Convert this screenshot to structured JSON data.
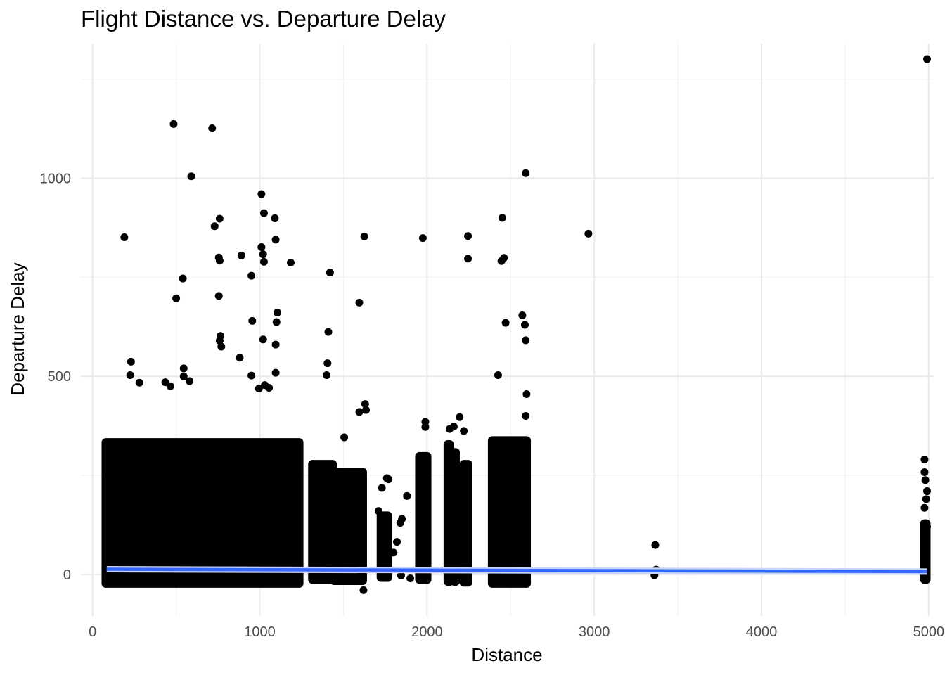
{
  "chart_data": {
    "type": "scatter",
    "title": "Flight Distance vs. Departure Delay",
    "xlabel": "Distance",
    "ylabel": "Departure Delay",
    "xlim": [
      -70,
      5030
    ],
    "ylim": [
      -105,
      1340
    ],
    "xticks": [
      0,
      1000,
      2000,
      3000,
      4000,
      5000
    ],
    "xtick_labels": [
      "0",
      "1000",
      "2000",
      "3000",
      "4000",
      "5000"
    ],
    "yticks": [
      0,
      500,
      1000
    ],
    "ytick_labels": [
      "0",
      "500",
      "1000"
    ],
    "grid": true,
    "legend": "none",
    "colors": {
      "points": "#000000",
      "trend": "#3366ff",
      "grid": "#ebebeb"
    },
    "series": [
      {
        "points": [
          [
            485,
            1137
          ],
          [
            715,
            1126
          ],
          [
            590,
            1005
          ],
          [
            190,
            851
          ],
          [
            730,
            879
          ],
          [
            760,
            898
          ],
          [
            540,
            747
          ],
          [
            500,
            697
          ],
          [
            760,
            792
          ],
          [
            755,
            800
          ],
          [
            755,
            703
          ],
          [
            1010,
            960
          ],
          [
            1025,
            912
          ],
          [
            1090,
            899
          ],
          [
            1010,
            826
          ],
          [
            1020,
            808
          ],
          [
            1095,
            845
          ],
          [
            1025,
            789
          ],
          [
            890,
            805
          ],
          [
            950,
            754
          ],
          [
            1185,
            787
          ],
          [
            1420,
            762
          ],
          [
            1625,
            853
          ],
          [
            1595,
            686
          ],
          [
            1975,
            849
          ],
          [
            2245,
            854
          ],
          [
            2245,
            797
          ],
          [
            2445,
            791
          ],
          [
            2460,
            799
          ],
          [
            2450,
            900
          ],
          [
            2590,
            1013
          ],
          [
            2570,
            654
          ],
          [
            2470,
            635
          ],
          [
            2585,
            630
          ],
          [
            2590,
            591
          ],
          [
            2425,
            503
          ],
          [
            955,
            640
          ],
          [
            1020,
            593
          ],
          [
            1095,
            580
          ],
          [
            1100,
            637
          ],
          [
            1105,
            661
          ],
          [
            760,
            590
          ],
          [
            765,
            602
          ],
          [
            770,
            575
          ],
          [
            880,
            547
          ],
          [
            950,
            502
          ],
          [
            995,
            469
          ],
          [
            1030,
            478
          ],
          [
            1055,
            471
          ],
          [
            1095,
            509
          ],
          [
            1410,
            612
          ],
          [
            1405,
            533
          ],
          [
            1400,
            503
          ],
          [
            230,
            537
          ],
          [
            225,
            503
          ],
          [
            545,
            520
          ],
          [
            545,
            500
          ],
          [
            580,
            488
          ],
          [
            280,
            484
          ],
          [
            435,
            485
          ],
          [
            465,
            475
          ],
          [
            2965,
            860
          ],
          [
            3365,
            74
          ],
          [
            3370,
            12
          ],
          [
            3360,
            -2
          ],
          [
            4990,
            1301
          ],
          [
            4975,
            290
          ],
          [
            4975,
            258
          ],
          [
            4980,
            238
          ],
          [
            4990,
            210
          ],
          [
            4985,
            190
          ],
          [
            4975,
            168
          ],
          [
            4990,
            120
          ],
          [
            4975,
            80
          ],
          [
            4980,
            40
          ],
          [
            1505,
            346
          ],
          [
            1595,
            410
          ],
          [
            1630,
            430
          ],
          [
            1635,
            415
          ],
          [
            1990,
            385
          ],
          [
            1990,
            372
          ],
          [
            2135,
            367
          ],
          [
            2160,
            373
          ],
          [
            2195,
            397
          ],
          [
            2220,
            362
          ],
          [
            2410,
            320
          ],
          [
            2590,
            400
          ],
          [
            2595,
            455
          ],
          [
            1760,
            243
          ],
          [
            1770,
            240
          ],
          [
            1730,
            218
          ],
          [
            1880,
            198
          ],
          [
            1850,
            140
          ],
          [
            1840,
            130
          ],
          [
            1820,
            82
          ],
          [
            1800,
            55
          ],
          [
            1740,
            66
          ],
          [
            1620,
            -40
          ],
          [
            1845,
            -3
          ],
          [
            1900,
            -10
          ],
          [
            1710,
            160
          ],
          [
            1745,
            110
          ]
        ],
        "dense_clusters": [
          {
            "x": [
              75,
              1240
            ],
            "y": [
              -25,
              335
            ]
          },
          {
            "x": [
              1310,
              1440
            ],
            "y": [
              -15,
              280
            ]
          },
          {
            "x": [
              1440,
              1620
            ],
            "y": [
              -18,
              260
            ]
          },
          {
            "x": [
              1720,
              1770
            ],
            "y": [
              -10,
              150
            ]
          },
          {
            "x": [
              1950,
              2005
            ],
            "y": [
              -15,
              300
            ]
          },
          {
            "x": [
              2120,
              2140
            ],
            "y": [
              -20,
              330
            ]
          },
          {
            "x": [
              2160,
              2175
            ],
            "y": [
              -20,
              310
            ]
          },
          {
            "x": [
              2215,
              2250
            ],
            "y": [
              -22,
              280
            ]
          },
          {
            "x": [
              2385,
              2600
            ],
            "y": [
              -25,
              340
            ]
          },
          {
            "x": [
              4970,
              4990
            ],
            "y": [
              -15,
              130
            ]
          }
        ]
      },
      {
        "kind": "trend",
        "x": [
          85,
          4990
        ],
        "y": [
          13,
          7
        ]
      }
    ]
  }
}
